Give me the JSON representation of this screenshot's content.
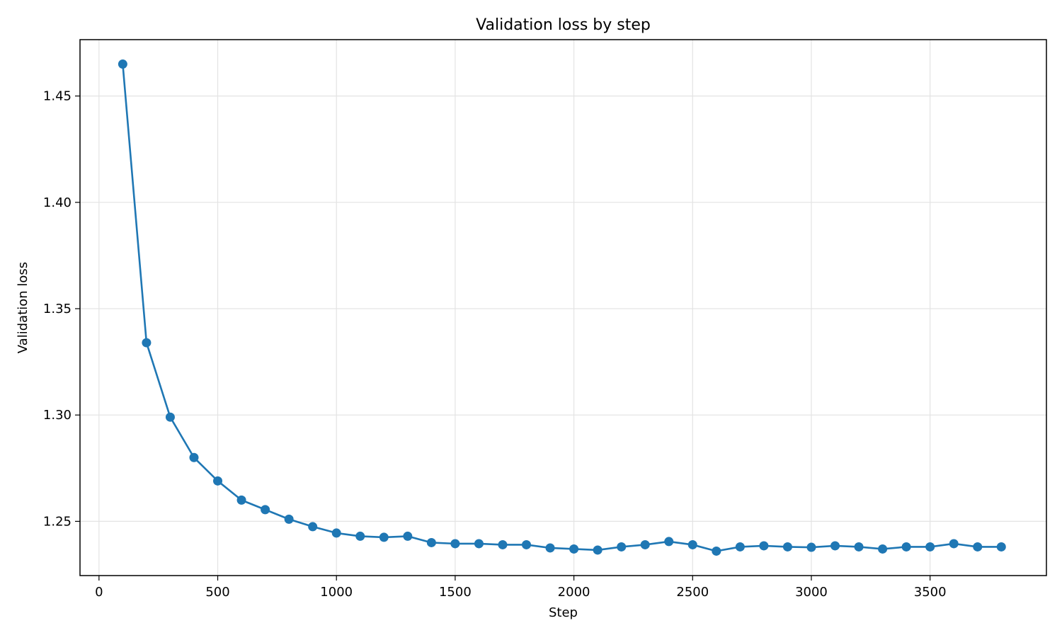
{
  "chart_data": {
    "type": "line",
    "title": "Validation loss by step",
    "xlabel": "Step",
    "ylabel": "Validation loss",
    "xlim": [
      -80,
      3990
    ],
    "ylim": [
      1.2245,
      1.4765
    ],
    "xticks": [
      0,
      500,
      1000,
      1500,
      2000,
      2500,
      3000,
      3500
    ],
    "yticks": [
      1.25,
      1.3,
      1.35,
      1.4,
      1.45
    ],
    "xtick_labels": [
      "0",
      "500",
      "1000",
      "1500",
      "2000",
      "2500",
      "3000",
      "3500"
    ],
    "ytick_labels": [
      "1.25",
      "1.30",
      "1.35",
      "1.40",
      "1.45"
    ],
    "grid": true,
    "legend": "none",
    "series": [
      {
        "color": "#1f77b4",
        "marker": "circle",
        "x": [
          100,
          200,
          300,
          400,
          500,
          600,
          700,
          800,
          900,
          1000,
          1100,
          1200,
          1300,
          1400,
          1500,
          1600,
          1700,
          1800,
          1900,
          2000,
          2100,
          2200,
          2300,
          2400,
          2500,
          2600,
          2700,
          2800,
          2900,
          3000,
          3100,
          3200,
          3300,
          3400,
          3500,
          3600,
          3700,
          3800
        ],
        "y": [
          1.465,
          1.334,
          1.299,
          1.28,
          1.269,
          1.26,
          1.2555,
          1.251,
          1.2475,
          1.2445,
          1.243,
          1.2425,
          1.243,
          1.24,
          1.2395,
          1.2395,
          1.239,
          1.239,
          1.2375,
          1.237,
          1.2365,
          1.238,
          1.239,
          1.2405,
          1.239,
          1.236,
          1.238,
          1.2385,
          1.238,
          1.2378,
          1.2385,
          1.238,
          1.237,
          1.238,
          1.238,
          1.2395,
          1.238,
          1.238
        ]
      }
    ]
  }
}
